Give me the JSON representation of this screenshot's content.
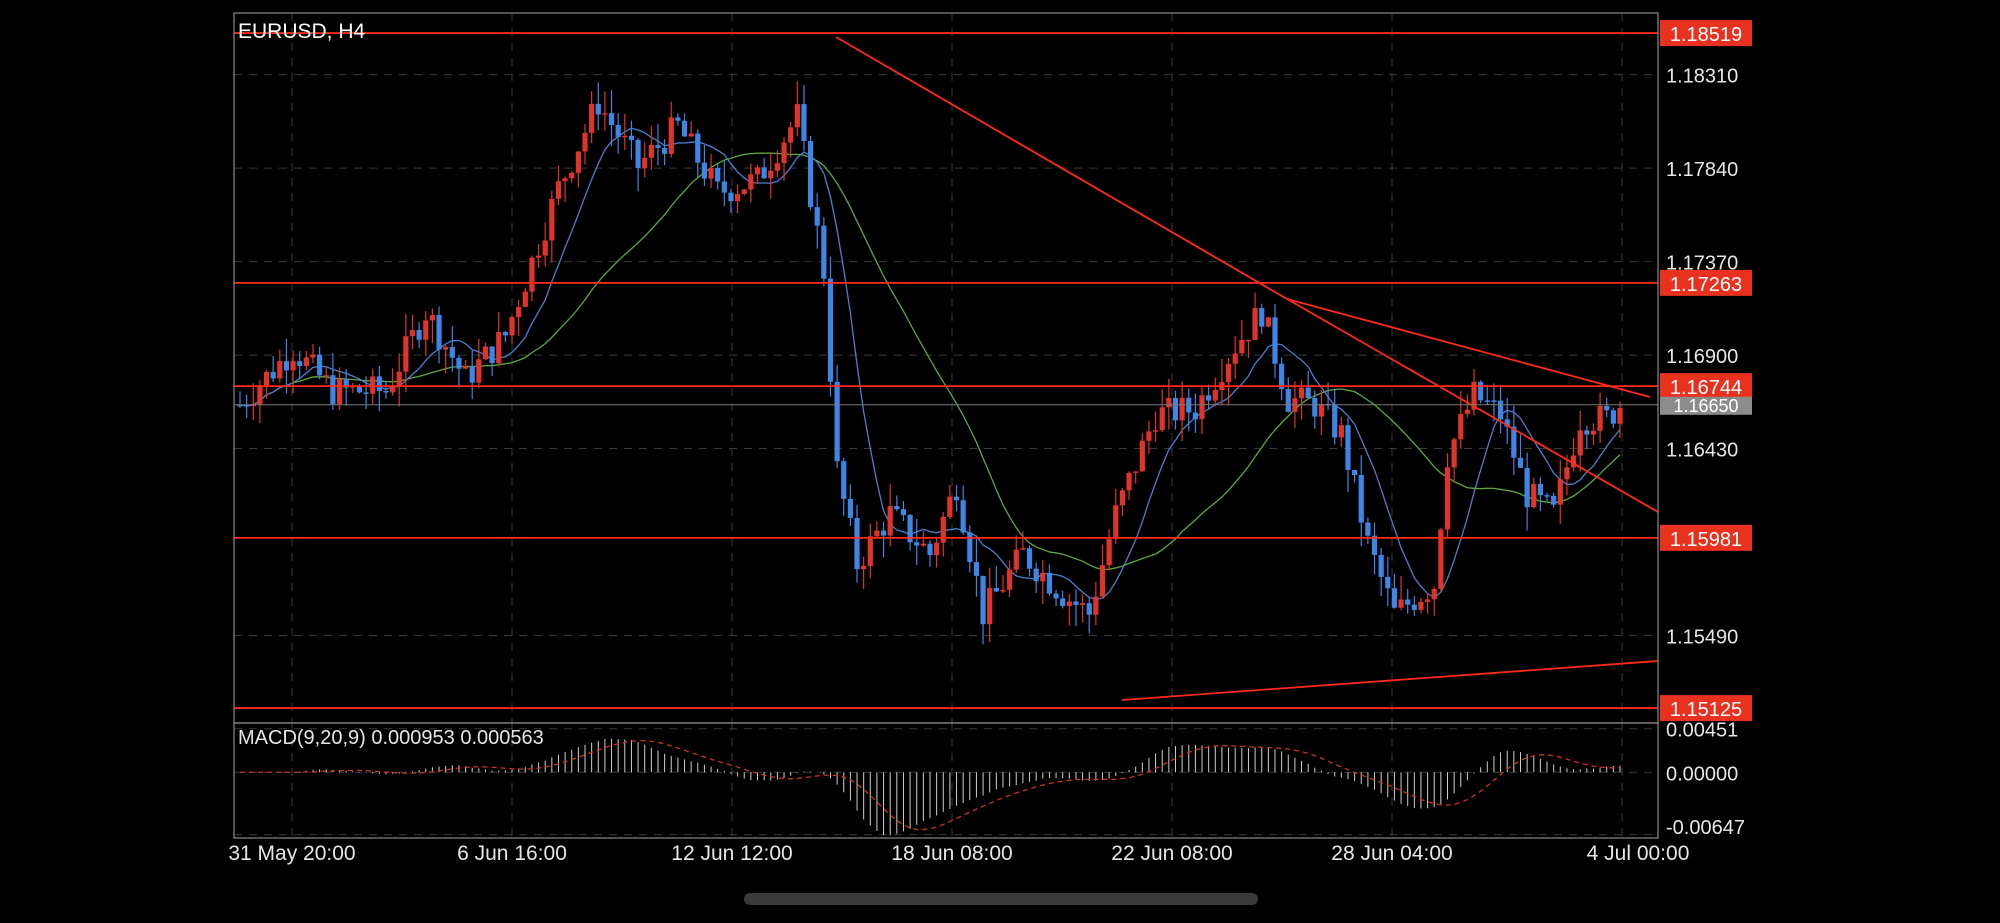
{
  "chart": {
    "symbol_label": "EURUSD, H4",
    "macd_label": "MACD(9,20,9) 0.000953 0.000563",
    "price_axis": {
      "ticks": [
        "1.18310",
        "1.17840",
        "1.17370",
        "1.16900",
        "1.16430",
        "1.15490"
      ],
      "tick_values": [
        1.1831,
        1.1784,
        1.1737,
        1.169,
        1.1643,
        1.1549
      ],
      "range": [
        1.1505,
        1.1862
      ]
    },
    "macd_axis": {
      "ticks": [
        "0.00451",
        "0.00000",
        "-0.00647"
      ],
      "tick_values": [
        0.00451,
        0.0,
        -0.00647
      ],
      "range": [
        -0.0068,
        0.0051
      ]
    },
    "time_axis": {
      "labels": [
        "31 May 20:00",
        "6 Jun 16:00",
        "12 Jun 12:00",
        "18 Jun 08:00",
        "22 Jun 08:00",
        "28 Jun 04:00",
        "4 Jul 00:00"
      ]
    },
    "horizontal_levels": [
      {
        "label": "1.18519",
        "value": 1.18519
      },
      {
        "label": "1.17263",
        "value": 1.17263
      },
      {
        "label": "1.16744",
        "value": 1.16744
      },
      {
        "label": "1.15981",
        "value": 1.15981
      },
      {
        "label": "1.15125",
        "value": 1.15125
      }
    ],
    "current_price": {
      "label": "1.16650",
      "value": 1.1665
    },
    "colors": {
      "bull": "#e0342a",
      "bear": "#3d86e6",
      "level": "#ff2a1a",
      "label_bg": "#e8321f",
      "ma_fast": "#4c7fd0",
      "ma_slow": "#5fa83a",
      "grid": "#3a3a3a",
      "frame": "#8a8a8a",
      "macd_hist": "#cfcfcf",
      "macd_signal": "#d0302a"
    }
  }
}
